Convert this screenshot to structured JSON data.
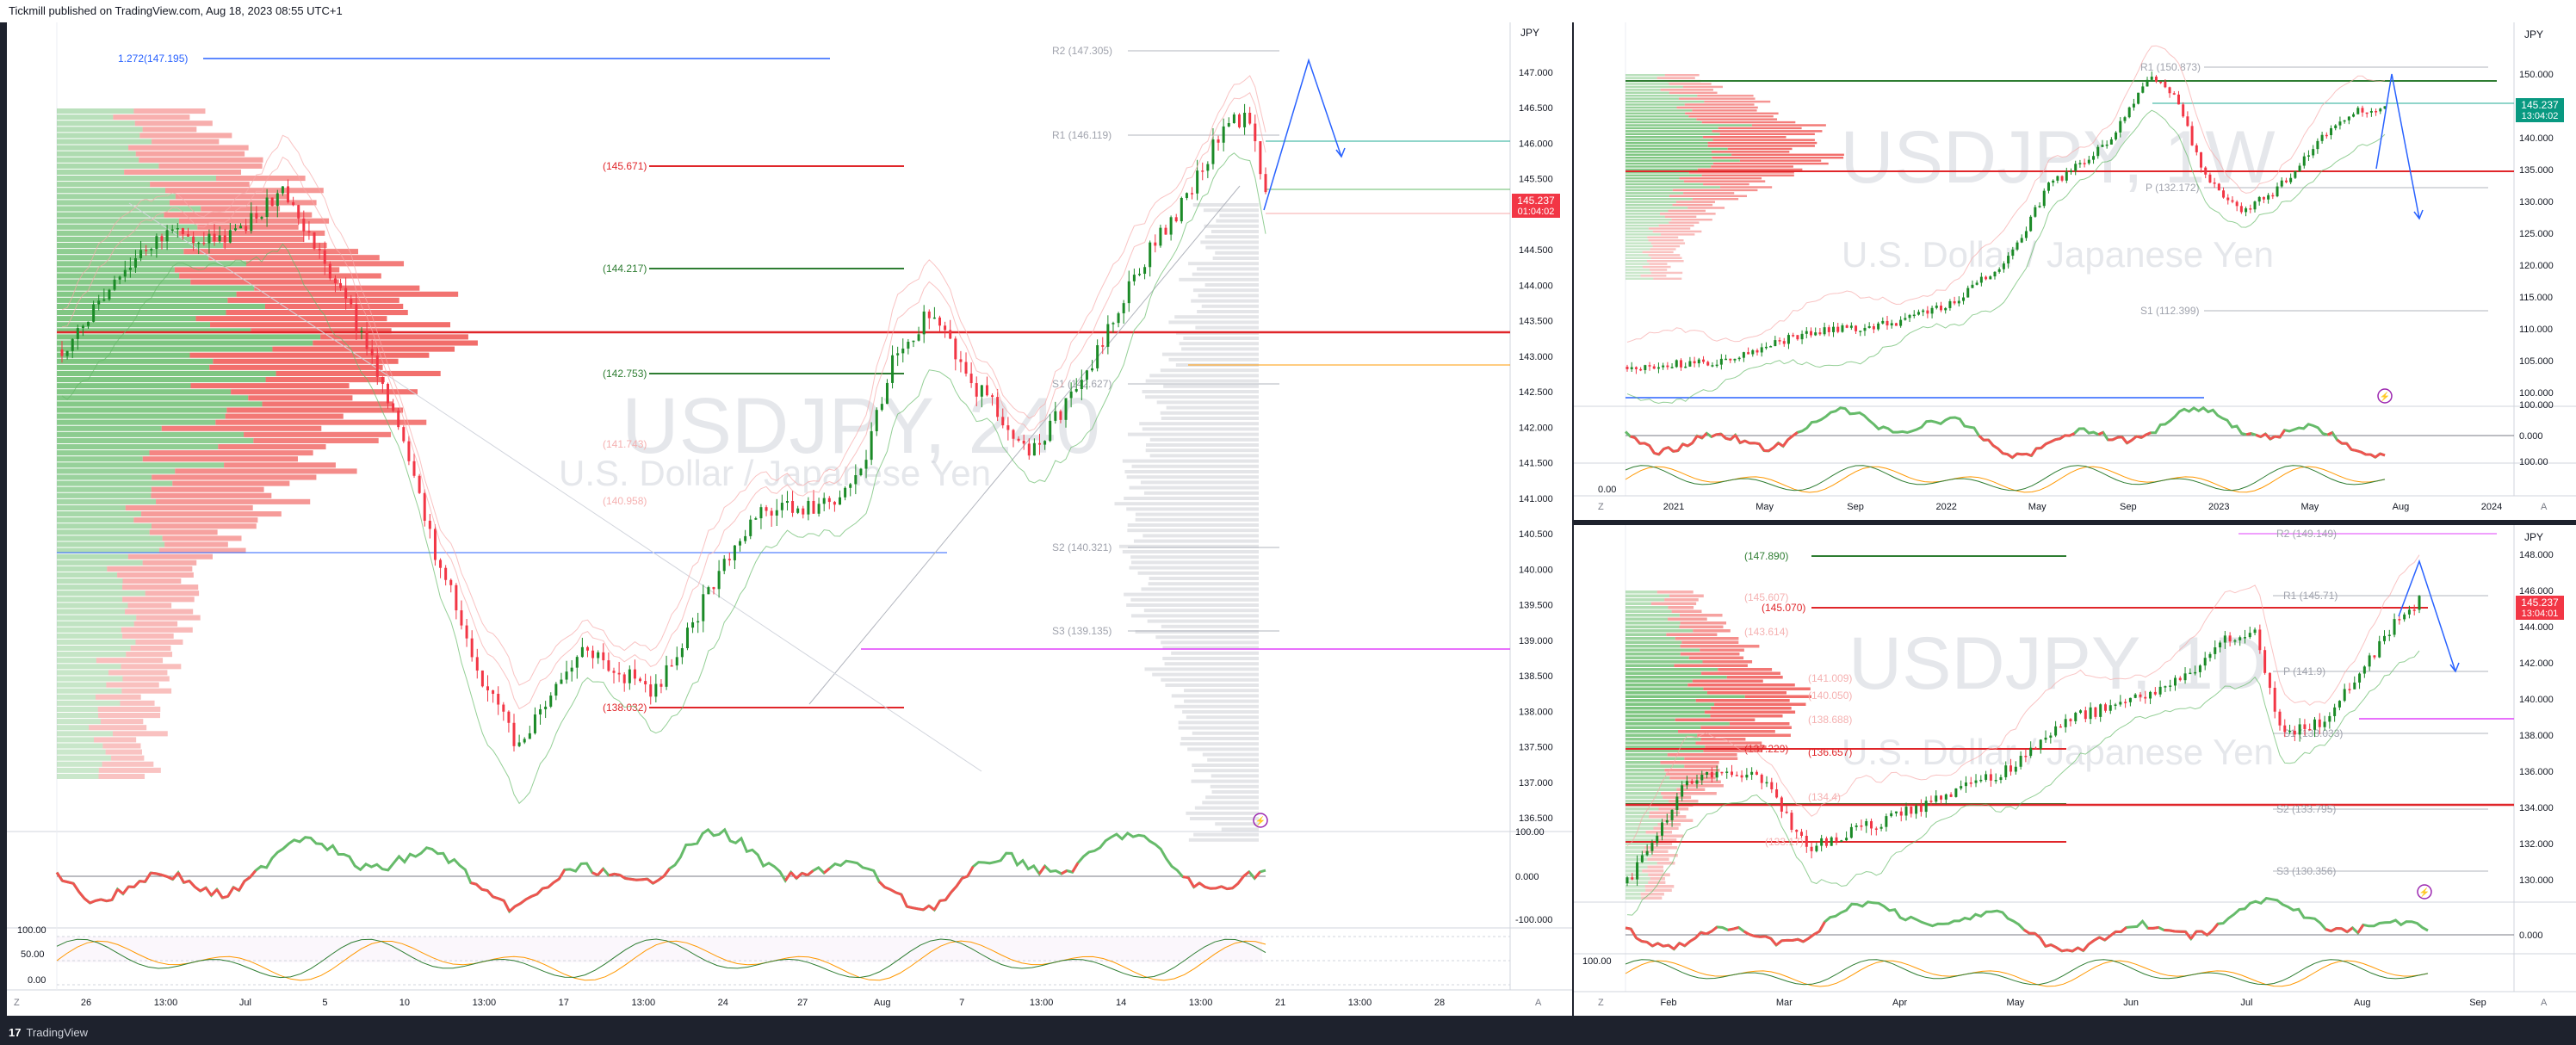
{
  "header": {
    "publish_text": "Tickmill published on TradingView.com, Aug 18, 2023 08:55 UTC+1"
  },
  "footer": {
    "logo_text": "17",
    "brand": "TradingView"
  },
  "left_chart": {
    "currency": "JPY",
    "watermark_symbol": "USDJPY, 240",
    "watermark_name": "U.S. Dollar / Japanese Yen",
    "price_ticks": [
      "147.000",
      "146.500",
      "146.000",
      "145.500",
      "145.000",
      "144.500",
      "144.000",
      "143.500",
      "143.000",
      "142.500",
      "142.000",
      "141.500",
      "141.000",
      "140.500",
      "140.000",
      "139.500",
      "139.000",
      "138.500",
      "138.000",
      "137.500",
      "137.000",
      "136.500"
    ],
    "last_price": "145.237",
    "last_price_timer": "01:04:02",
    "fib_label": "1.272(147.195)",
    "pivots": [
      "R2 (147.305)",
      "R1 (146.119)",
      "S1 (142.627)",
      "S2 (140.321)",
      "S3 (139.135)"
    ],
    "levels": [
      "(145.671)",
      "(144.217)",
      "(142.753)",
      "(138.032)",
      "(141.743)",
      "(140.958)"
    ],
    "osc_ticks": [
      "100.00",
      "0.000",
      "-100.000"
    ],
    "stoch_ticks": [
      "100.00",
      "50.00",
      "0.00"
    ],
    "time_labels": [
      "26",
      "13:00",
      "Jul",
      "5",
      "10",
      "13:00",
      "17",
      "13:00",
      "24",
      "27",
      "Aug",
      "7",
      "13:00",
      "14",
      "13:00",
      "21",
      "13:00",
      "28"
    ],
    "axis_buttons": [
      "Z",
      "A"
    ]
  },
  "right_top_chart": {
    "currency": "JPY",
    "watermark_symbol": "USDJPY, 1W",
    "watermark_name": "U.S. Dollar / Japanese Yen",
    "price_ticks": [
      "150.000",
      "145.000",
      "140.000",
      "135.000",
      "130.000",
      "125.000",
      "120.000",
      "115.000",
      "110.000",
      "105.000",
      "100.000"
    ],
    "last_price": "145.237",
    "last_price_timer": "13:04:02",
    "pivots": [
      "R1 (150.873)",
      "P (132.172)",
      "S1 (112.399)"
    ],
    "osc_ticks": [
      "100.000",
      "0.000"
    ],
    "stoch_ticks": [
      "100.00",
      "0.00"
    ],
    "time_labels": [
      "2021",
      "May",
      "Sep",
      "2022",
      "May",
      "Sep",
      "2023",
      "May",
      "Aug",
      "2024"
    ],
    "axis_buttons": [
      "Z",
      "A"
    ]
  },
  "right_bottom_chart": {
    "currency": "JPY",
    "watermark_symbol": "USDJPY, 1D",
    "watermark_name": "U.S. Dollar / Japanese Yen",
    "price_ticks": [
      "148.000",
      "146.000",
      "144.000",
      "142.000",
      "140.000",
      "138.000",
      "136.000",
      "134.000",
      "132.000",
      "130.000"
    ],
    "last_price": "145.237",
    "last_price_timer": "13:04:01",
    "pivots": [
      "R2 (149.149)",
      "R1 (145.71)",
      "P (141.9)",
      "S1 (138.033)",
      "S2 (133.795)",
      "S3 (130.356)"
    ],
    "levels": [
      "(147.890)",
      "(145.070)",
      "(137.229)",
      "(136.657)",
      "(133.17)",
      "(145.607)",
      "(143.614)",
      "(141.009)",
      "(140.050)",
      "(138.688)",
      "(134.4)"
    ],
    "osc_ticks": [
      "0.000"
    ],
    "stoch_ticks": [
      "100.00"
    ],
    "time_labels": [
      "Feb",
      "Mar",
      "Apr",
      "May",
      "Jun",
      "Jul",
      "Aug",
      "Sep"
    ],
    "axis_buttons": [
      "Z",
      "A"
    ]
  },
  "colors": {
    "up": "#1b8a27",
    "down": "#f23645",
    "level_red": "#e0262a",
    "level_green": "#2e7d32",
    "fib_blue": "#2962ff",
    "osc_green": "#66bb6a",
    "osc_red": "#ef5350",
    "magenta": "#e040fb"
  }
}
